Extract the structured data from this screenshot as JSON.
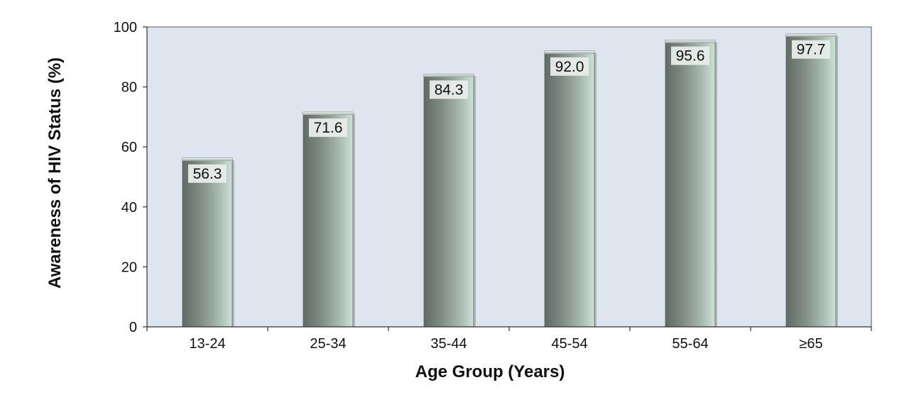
{
  "chart_data": {
    "type": "bar",
    "title": "",
    "xlabel": "Age Group (Years)",
    "ylabel": "Awareness of HIV Status (%)",
    "categories": [
      "13-24",
      "25-34",
      "35-44",
      "45-54",
      "55-64",
      "≥65"
    ],
    "values": [
      56.3,
      71.6,
      84.3,
      92.0,
      95.6,
      97.7
    ],
    "data_labels": [
      "56.3",
      "71.6",
      "84.3",
      "92.0",
      "95.6",
      "97.7"
    ],
    "ylim": [
      0,
      100
    ],
    "yticks": [
      "0",
      "20",
      "40",
      "60",
      "80",
      "100"
    ],
    "grid": false,
    "legend": "none",
    "colors": {
      "plot_background": "#dfe5ee",
      "bar_dark": "#6f7a73",
      "bar_light": "#c9ddd4",
      "label_box": "#e8ecea"
    }
  }
}
